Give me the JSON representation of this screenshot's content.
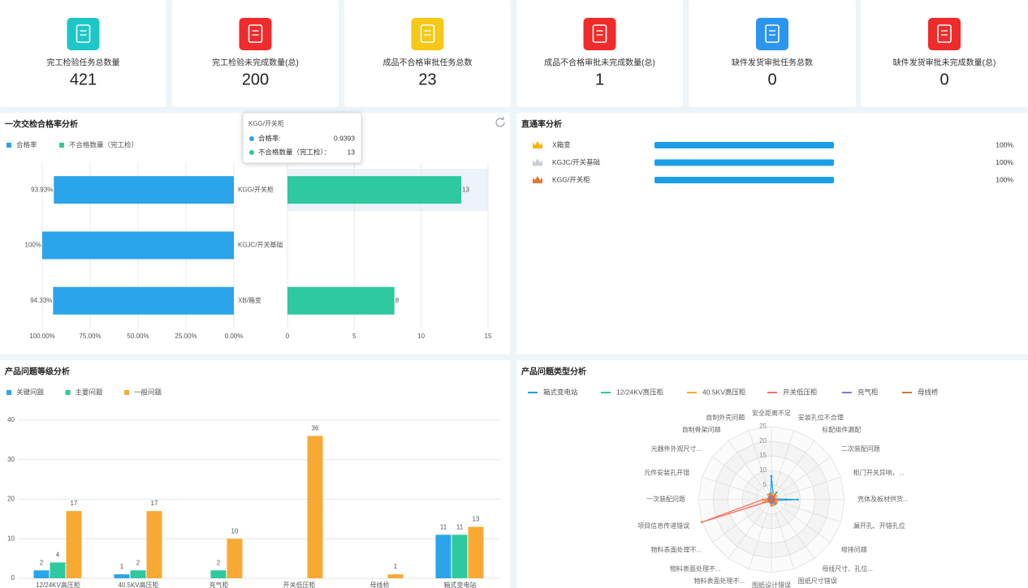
{
  "kpis": [
    {
      "label": "完工检验任务总数量",
      "value": 421,
      "color": "#1dc7c7"
    },
    {
      "label": "完工检验未完成数量(总)",
      "value": 200,
      "color": "#f02b2b"
    },
    {
      "label": "成品不合格审批任务总数",
      "value": 23,
      "color": "#f6c818"
    },
    {
      "label": "成品不合格审批未完成数量(总)",
      "value": 1,
      "color": "#f02b2b"
    },
    {
      "label": "缺件发货审批任务总数",
      "value": 0,
      "color": "#2b95f0"
    },
    {
      "label": "缺件发货审批未完成数量(总)",
      "value": 0,
      "color": "#f02b2b"
    }
  ],
  "chart_data": [
    {
      "type": "butterfly",
      "title": "一次交检合格率分析",
      "categories": [
        "KGG/开关柜",
        "KGJC/开关基础",
        "XB/箱变"
      ],
      "series": [
        {
          "name": "合格率",
          "color": "#2aa4ea",
          "values": [
            93.93,
            100,
            94.33
          ],
          "value_labels": [
            "93.93%",
            "100%",
            "94.33%"
          ]
        },
        {
          "name": "不合格数量（完工检）",
          "color": "#2ec99e",
          "values": [
            13,
            null,
            8
          ],
          "axis": "x2"
        }
      ],
      "xlim": [
        100,
        0
      ],
      "xticks": [
        {
          "value": 100,
          "label": "100.00%"
        },
        {
          "value": 75,
          "label": "75.00%"
        },
        {
          "value": 50,
          "label": "50.00%"
        },
        {
          "value": 25,
          "label": "25.00%"
        },
        {
          "value": 0,
          "label": "0.00%"
        }
      ],
      "x2lim": [
        0,
        15
      ],
      "x2ticks": [
        0,
        5,
        10,
        15
      ],
      "grid": true,
      "tooltip": {
        "title": "KGG/开关柜",
        "rows": [
          {
            "label": "合格率:",
            "value": 0.9393
          },
          {
            "label": "不合格数量（完工检）：",
            "value": 13
          }
        ]
      }
    },
    {
      "type": "progress",
      "title": "直通率分析",
      "categories": [
        "X箱变",
        "KGJC/开关基础",
        "KGG/开关柜"
      ],
      "values": [
        100,
        100,
        100
      ],
      "value_labels": [
        "100%",
        "100%",
        "100%"
      ],
      "xlim": [
        0,
        100
      ],
      "color": "#1a9fe6"
    },
    {
      "type": "bar",
      "title": "产品问题等级分析",
      "categories": [
        "12/24KV高压柜",
        "40.5KV高压柜",
        "充气柜",
        "开关低压柜",
        "母线桥",
        "箱式变电站"
      ],
      "series": [
        {
          "name": "关键问题",
          "color": "#2aa4ea",
          "values": [
            2,
            1,
            null,
            null,
            null,
            11
          ]
        },
        {
          "name": "主要问题",
          "color": "#2ec99e",
          "values": [
            4,
            2,
            2,
            null,
            null,
            11
          ]
        },
        {
          "name": "一般问题",
          "color": "#f8a934",
          "values": [
            17,
            17,
            10,
            36,
            1,
            13
          ]
        }
      ],
      "ylim": [
        0,
        40
      ],
      "yticks": [
        0,
        10,
        20,
        30,
        40
      ],
      "grid": true
    },
    {
      "type": "radar",
      "title": "产品问题类型分析",
      "indicators": [
        "安全距离不足",
        "安装孔位不合理",
        "标配组件漏配",
        "二次装配问题",
        "柜门开关异响，...",
        "壳体及板材供货...",
        "漏开孔、开错孔位",
        "母排问题",
        "母线尺寸、孔位...",
        "图纸尺寸错误",
        "图纸设计错误",
        "物料表面处理不...",
        "物料表面处理不...",
        "物料表面处理不...",
        "项目信息传递错误",
        "一次装配问题",
        "元件安装孔开错",
        "元器件外观尺寸...",
        "自制骨架问题",
        "自制外壳问题"
      ],
      "series": [
        {
          "name": "箱式变电站",
          "color": "#1f9ee6",
          "values": [
            8,
            2,
            1,
            1,
            1,
            9,
            1,
            2,
            1,
            1,
            0,
            1,
            1,
            0,
            1,
            1,
            0,
            1,
            0,
            1
          ]
        },
        {
          "name": "12/24KV高压柜",
          "color": "#2ec99e",
          "values": [
            2,
            1,
            3,
            1,
            0,
            2,
            1,
            1,
            2,
            1,
            1,
            1,
            0,
            1,
            2,
            2,
            1,
            1,
            1,
            1
          ]
        },
        {
          "name": "40.5KV高压柜",
          "color": "#f8a934",
          "values": [
            1,
            2,
            1,
            2,
            1,
            1,
            2,
            1,
            1,
            2,
            1,
            0,
            1,
            1,
            3,
            2,
            1,
            1,
            2,
            1
          ]
        },
        {
          "name": "开关低压柜",
          "color": "#f5715b",
          "values": [
            1,
            1,
            2,
            1,
            1,
            2,
            1,
            2,
            1,
            1,
            2,
            1,
            1,
            1,
            25,
            3,
            1,
            1,
            1,
            2
          ]
        },
        {
          "name": "充气柜",
          "color": "#8b6fe6",
          "values": [
            1,
            0,
            1,
            1,
            0,
            1,
            1,
            0,
            1,
            1,
            0,
            1,
            0,
            1,
            1,
            1,
            0,
            0,
            1,
            1
          ]
        },
        {
          "name": "母线桥",
          "color": "#c8783a",
          "values": [
            0,
            1,
            0,
            0,
            1,
            0,
            1,
            1,
            0,
            0,
            0,
            0,
            1,
            0,
            1,
            0,
            1,
            0,
            0,
            0
          ]
        }
      ],
      "ylim": [
        0,
        25
      ],
      "yticks": [
        5,
        10,
        15,
        20,
        25
      ]
    }
  ]
}
